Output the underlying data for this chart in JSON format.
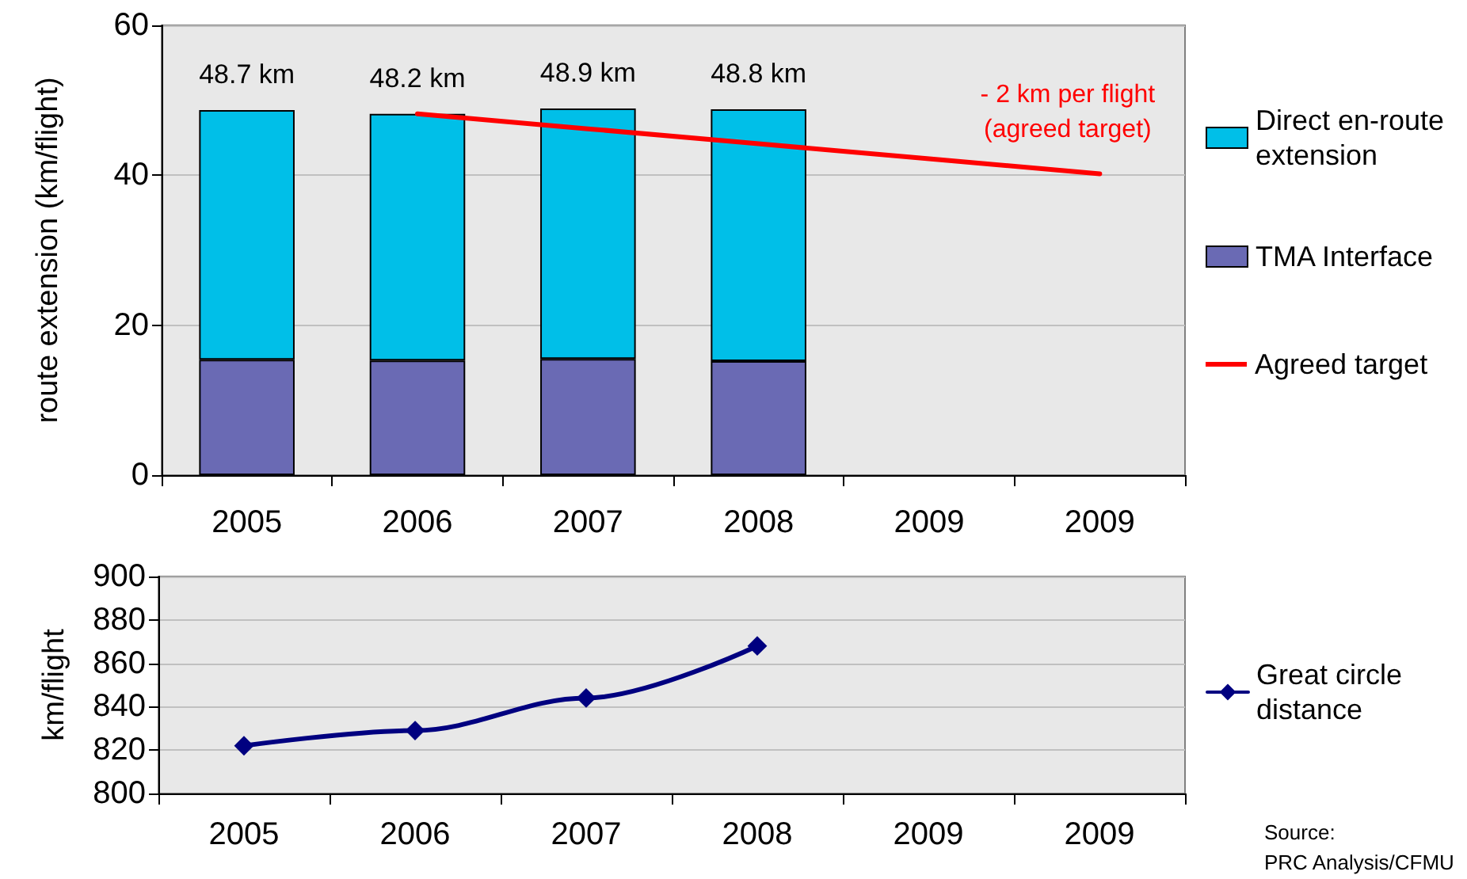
{
  "chart_data": [
    {
      "type": "bar",
      "stacked": true,
      "ylabel": "route extension (km/flight)",
      "categories": [
        "2005",
        "2006",
        "2007",
        "2008",
        "2009",
        "2009"
      ],
      "series": [
        {
          "name": "TMA Interface",
          "color": "#6a6ab4",
          "values": [
            15.4,
            15.3,
            15.5,
            15.2,
            null,
            null
          ]
        },
        {
          "name": "Direct en-route extension",
          "color": "#00bfe8",
          "values": [
            33.3,
            32.9,
            33.4,
            33.6,
            null,
            null
          ]
        },
        {
          "name": "Agreed target",
          "type": "line",
          "color": "#ff0000",
          "values": [
            null,
            48.2,
            46.2,
            44.2,
            42.2,
            40.2
          ]
        }
      ],
      "totals": [
        "48.7 km",
        "48.2 km",
        "48.9 km",
        "48.8 km",
        null,
        null
      ],
      "annotations": [
        "- 2 km per flight\n(agreed target)"
      ],
      "ylim": [
        0,
        60
      ],
      "yticks": [
        0,
        20,
        40,
        60
      ],
      "grid": "y",
      "legend": "right"
    },
    {
      "type": "line",
      "ylabel": "km/flight",
      "categories": [
        "2005",
        "2006",
        "2007",
        "2008",
        "2009",
        "2009"
      ],
      "series": [
        {
          "name": "Great circle distance",
          "color": "#000080",
          "values": [
            822,
            829,
            844,
            868,
            null,
            null
          ]
        }
      ],
      "marker": "diamond",
      "ylim": [
        800,
        900
      ],
      "yticks": [
        800,
        820,
        840,
        860,
        880,
        900
      ],
      "grid": "y",
      "legend": "right",
      "annotations": [
        "Source:\nPRC Analysis/CFMU"
      ]
    }
  ]
}
